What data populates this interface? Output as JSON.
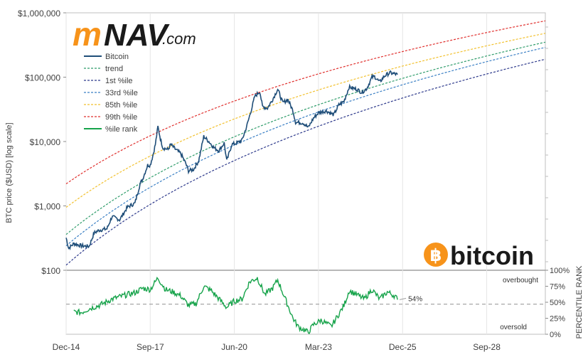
{
  "logo": {
    "m_letter": "m",
    "nav_text": "NAV",
    "dotcom_text": ".com",
    "m_color": "#f7931a",
    "nav_color": "#1a1a1a"
  },
  "brand": {
    "symbol": "฿",
    "word": "bitcoin",
    "color": "#f7931a"
  },
  "chart_data": {
    "type": "line",
    "ylabel": "BTC price ($USD) [log scale]",
    "yscale": "log",
    "ylim": [
      100,
      1000000
    ],
    "yticks": [
      "$100",
      "$1,000",
      "$10,000",
      "$100,000",
      "$1,000,000"
    ],
    "ytick_values": [
      100,
      1000,
      10000,
      100000,
      1000000
    ],
    "xlim": [
      "2014-12",
      "2030-08"
    ],
    "xticks": [
      "Dec-14",
      "Sep-17",
      "Jun-20",
      "Mar-23",
      "Dec-25",
      "Sep-28"
    ],
    "xtick_dates": [
      "2014-12",
      "2017-09",
      "2020-06",
      "2023-03",
      "2025-12",
      "2028-09"
    ],
    "legend": [
      "Bitcoin",
      "trend",
      "1st %ile",
      "33rd %ile",
      "85th %ile",
      "99th %ile",
      "%ile rank"
    ],
    "series_colors": {
      "Bitcoin": "#1f4e79",
      "trend": "#2e9c6a",
      "1st %ile": "#2e3a8c",
      "33rd %ile": "#3a7fc4",
      "85th %ile": "#f2c12e",
      "99th %ile": "#e0302e",
      "%ile rank": "#16a34a"
    },
    "percentile_bands": [
      {
        "name": "99th %ile",
        "start": 2200,
        "end": 750000
      },
      {
        "name": "85th %ile",
        "start": 950,
        "end": 480000
      },
      {
        "name": "trend",
        "start": 360,
        "end": 350000
      },
      {
        "name": "33rd %ile",
        "start": 240,
        "end": 290000
      },
      {
        "name": "1st %ile",
        "start": 120,
        "end": 190000
      }
    ],
    "bitcoin_price": [
      [
        "2014-12",
        320
      ],
      [
        "2015-01",
        220
      ],
      [
        "2015-03",
        260
      ],
      [
        "2015-06",
        240
      ],
      [
        "2015-09",
        235
      ],
      [
        "2015-11",
        380
      ],
      [
        "2016-01",
        420
      ],
      [
        "2016-04",
        440
      ],
      [
        "2016-06",
        680
      ],
      [
        "2016-09",
        610
      ],
      [
        "2016-12",
        950
      ],
      [
        "2017-01",
        1000
      ],
      [
        "2017-03",
        1100
      ],
      [
        "2017-05",
        2200
      ],
      [
        "2017-06",
        2600
      ],
      [
        "2017-08",
        4300
      ],
      [
        "2017-09",
        4300
      ],
      [
        "2017-10",
        6000
      ],
      [
        "2017-11",
        9000
      ],
      [
        "2017-12",
        17000
      ],
      [
        "2018-01",
        11000
      ],
      [
        "2018-02",
        8000
      ],
      [
        "2018-04",
        7500
      ],
      [
        "2018-05",
        9000
      ],
      [
        "2018-07",
        7500
      ],
      [
        "2018-09",
        6500
      ],
      [
        "2018-11",
        4500
      ],
      [
        "2018-12",
        3500
      ],
      [
        "2019-02",
        3700
      ],
      [
        "2019-04",
        5000
      ],
      [
        "2019-06",
        12000
      ],
      [
        "2019-08",
        10000
      ],
      [
        "2019-10",
        8000
      ],
      [
        "2019-12",
        7200
      ],
      [
        "2020-02",
        9500
      ],
      [
        "2020-03",
        5000
      ],
      [
        "2020-05",
        9000
      ],
      [
        "2020-07",
        9500
      ],
      [
        "2020-09",
        10500
      ],
      [
        "2020-11",
        18000
      ],
      [
        "2021-01",
        35000
      ],
      [
        "2021-02",
        50000
      ],
      [
        "2021-04",
        60000
      ],
      [
        "2021-05",
        35000
      ],
      [
        "2021-07",
        33000
      ],
      [
        "2021-09",
        45000
      ],
      [
        "2021-11",
        65000
      ],
      [
        "2022-01",
        40000
      ],
      [
        "2022-03",
        45000
      ],
      [
        "2022-05",
        30000
      ],
      [
        "2022-06",
        20000
      ],
      [
        "2022-09",
        19500
      ],
      [
        "2022-11",
        16500
      ],
      [
        "2023-01",
        23000
      ],
      [
        "2023-03",
        28000
      ],
      [
        "2023-06",
        30000
      ],
      [
        "2023-09",
        26000
      ],
      [
        "2023-11",
        37000
      ],
      [
        "2024-01",
        42000
      ],
      [
        "2024-03",
        70000
      ],
      [
        "2024-06",
        65000
      ],
      [
        "2024-08",
        58000
      ],
      [
        "2024-10",
        67000
      ],
      [
        "2024-12",
        100000
      ],
      [
        "2025-01",
        102000
      ],
      [
        "2025-03",
        84000
      ],
      [
        "2025-05",
        105000
      ],
      [
        "2025-07",
        117000
      ],
      [
        "2025-09",
        112000
      ],
      [
        "2025-10",
        110000
      ]
    ],
    "percentile_rank": {
      "ylabel": "PERCENTILE RANK",
      "ylim": [
        0,
        100
      ],
      "yticks": [
        "0%",
        "25%",
        "50%",
        "75%",
        "100%"
      ],
      "ytick_values": [
        0,
        25,
        50,
        75,
        100
      ],
      "reference": 47,
      "points": [
        [
          "2015-03",
          35
        ],
        [
          "2015-06",
          34
        ],
        [
          "2015-09",
          40
        ],
        [
          "2016-01",
          45
        ],
        [
          "2016-06",
          55
        ],
        [
          "2016-12",
          62
        ],
        [
          "2017-03",
          65
        ],
        [
          "2017-06",
          72
        ],
        [
          "2017-09",
          70
        ],
        [
          "2017-12",
          88
        ],
        [
          "2018-03",
          70
        ],
        [
          "2018-06",
          66
        ],
        [
          "2018-09",
          60
        ],
        [
          "2018-12",
          45
        ],
        [
          "2019-03",
          48
        ],
        [
          "2019-06",
          75
        ],
        [
          "2019-09",
          68
        ],
        [
          "2019-12",
          55
        ],
        [
          "2020-03",
          42
        ],
        [
          "2020-06",
          52
        ],
        [
          "2020-09",
          55
        ],
        [
          "2020-12",
          82
        ],
        [
          "2021-03",
          88
        ],
        [
          "2021-06",
          62
        ],
        [
          "2021-09",
          72
        ],
        [
          "2021-11",
          85
        ],
        [
          "2022-02",
          55
        ],
        [
          "2022-05",
          25
        ],
        [
          "2022-07",
          12
        ],
        [
          "2022-11",
          3
        ],
        [
          "2023-01",
          15
        ],
        [
          "2023-04",
          22
        ],
        [
          "2023-08",
          12
        ],
        [
          "2023-10",
          25
        ],
        [
          "2024-01",
          45
        ],
        [
          "2024-03",
          68
        ],
        [
          "2024-06",
          62
        ],
        [
          "2024-09",
          55
        ],
        [
          "2024-12",
          70
        ],
        [
          "2025-03",
          55
        ],
        [
          "2025-06",
          66
        ],
        [
          "2025-09",
          60
        ],
        [
          "2025-10",
          54
        ]
      ],
      "annotations": {
        "overbought": "overbought",
        "oversold": "oversold",
        "current_label": "54%"
      }
    }
  }
}
